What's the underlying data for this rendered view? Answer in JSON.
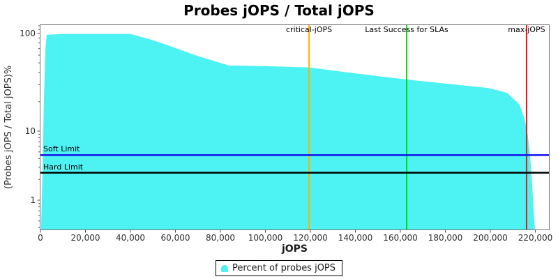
{
  "chart_data": {
    "type": "area",
    "title": "Probes jOPS / Total jOPS",
    "xlabel": "jOPS",
    "ylabel": "(Probes jOPS / Total jOPS)%",
    "x_scale": "linear",
    "y_scale": "log",
    "xlim": [
      0,
      226000
    ],
    "ylim": [
      0.35,
      123
    ],
    "grid": false,
    "legend_position": "bottom-center",
    "x_ticks": [
      {
        "value": 0,
        "label": "0"
      },
      {
        "value": 20000,
        "label": "20,000"
      },
      {
        "value": 40000,
        "label": "40,000"
      },
      {
        "value": 60000,
        "label": "60,000"
      },
      {
        "value": 80000,
        "label": "80,000"
      },
      {
        "value": 100000,
        "label": "100,000"
      },
      {
        "value": 120000,
        "label": "120,000"
      },
      {
        "value": 140000,
        "label": "140,000"
      },
      {
        "value": 160000,
        "label": "160,000"
      },
      {
        "value": 180000,
        "label": "180,000"
      },
      {
        "value": 200000,
        "label": "200,000"
      },
      {
        "value": 220000,
        "label": "220,000"
      }
    ],
    "y_ticks": [
      {
        "value": 100,
        "label": "100"
      },
      {
        "value": 10,
        "label": "10"
      },
      {
        "value": 1,
        "label": "1"
      }
    ],
    "y_minor_ticks": [
      120,
      110,
      90,
      80,
      70,
      60,
      50,
      40,
      30,
      20,
      9,
      8,
      7,
      6,
      5,
      4,
      3,
      2,
      0.9,
      0.8,
      0.7,
      0.6,
      0.5,
      0.4
    ],
    "series": [
      {
        "name": "Percent of probes jOPS",
        "color": "#4DF3F3",
        "points": [
          [
            300,
            0.45
          ],
          [
            900,
            2.4
          ],
          [
            1500,
            19
          ],
          [
            2200,
            70
          ],
          [
            2800,
            97
          ],
          [
            10000,
            99
          ],
          [
            40000,
            99
          ],
          [
            48000,
            88
          ],
          [
            55800,
            77
          ],
          [
            68800,
            60
          ],
          [
            83700,
            47
          ],
          [
            100000,
            46.3
          ],
          [
            119400,
            45
          ],
          [
            137000,
            39.8
          ],
          [
            162800,
            33.8
          ],
          [
            183600,
            30.1
          ],
          [
            199000,
            27.7
          ],
          [
            207400,
            24.7
          ],
          [
            213000,
            18.7
          ],
          [
            215200,
            13.4
          ],
          [
            216700,
            8.5
          ],
          [
            217700,
            4.2
          ],
          [
            218600,
            1.7
          ],
          [
            219200,
            0.74
          ],
          [
            219800,
            0.38
          ]
        ]
      }
    ],
    "markers": {
      "vertical": [
        {
          "label": "critical-jOPS",
          "value": 119400,
          "color": "#FFB000"
        },
        {
          "label": "Last Success for SLAs",
          "value": 162800,
          "color": "#00DD00"
        },
        {
          "label": "max-jOPS",
          "value": 216100,
          "color": "#EE1414"
        }
      ],
      "horizontal": [
        {
          "label": "Soft Limit",
          "value": 4.5,
          "color": "#1111EE"
        },
        {
          "label": "Hard Limit",
          "value": 2.5,
          "color": "#000000"
        }
      ]
    }
  }
}
